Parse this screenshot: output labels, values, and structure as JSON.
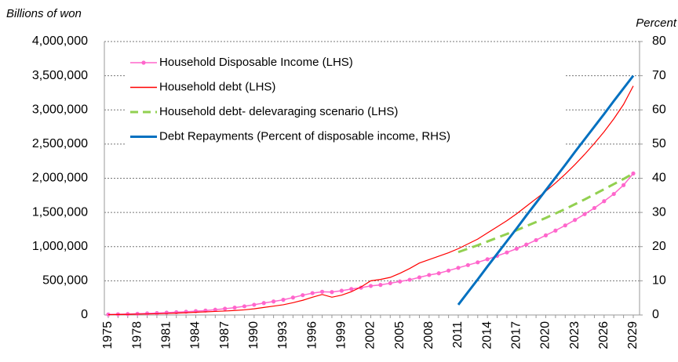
{
  "chart_data": {
    "type": "line",
    "y_label": "Billions of won",
    "y2_label": "Percent",
    "categories": [
      "1975",
      null,
      null,
      "1978",
      null,
      null,
      "1981",
      null,
      null,
      "1984",
      null,
      null,
      "1987",
      null,
      null,
      "1990",
      null,
      null,
      "1993",
      null,
      null,
      "1996",
      null,
      null,
      "1999",
      null,
      null,
      "2002",
      null,
      null,
      "2005",
      null,
      null,
      "2008",
      null,
      null,
      "2011",
      null,
      null,
      "2014",
      null,
      null,
      "2017",
      null,
      null,
      "2020",
      null,
      null,
      "2023",
      null,
      null,
      "2026",
      null,
      null,
      "2029"
    ],
    "series": [
      {
        "name": "Household Disposable Income (LHS)",
        "color": "#ff66cc",
        "markers": true,
        "values": [
          8000,
          10000,
          14000,
          18000,
          23000,
          28000,
          35000,
          41000,
          48000,
          56000,
          65000,
          77000,
          92000,
          108000,
          127000,
          150000,
          175000,
          198000,
          222000,
          255000,
          290000,
          320000,
          340000,
          335000,
          355000,
          380000,
          400000,
          425000,
          440000,
          465000,
          490000,
          515000,
          550000,
          585000,
          610000,
          650000,
          690000,
          730000,
          770000,
          815000,
          865000,
          915000,
          970000,
          1030000,
          1095000,
          1165000,
          1235000,
          1310000,
          1390000,
          1475000,
          1565000,
          1665000,
          1770000,
          1900000,
          2070000
        ]
      },
      {
        "name": "Household debt (LHS)",
        "color": "#ff0000",
        "values": [
          5000,
          7000,
          9000,
          12000,
          15000,
          18000,
          22000,
          27000,
          33000,
          40000,
          46000,
          52000,
          58000,
          66000,
          75000,
          90000,
          110000,
          130000,
          150000,
          180000,
          215000,
          260000,
          300000,
          260000,
          290000,
          340000,
          410000,
          500000,
          520000,
          550000,
          610000,
          680000,
          760000,
          810000,
          860000,
          910000,
          970000,
          1040000,
          1110000,
          1200000,
          1290000,
          1380000,
          1480000,
          1590000,
          1700000,
          1810000,
          1930000,
          2060000,
          2200000,
          2350000,
          2510000,
          2680000,
          2870000,
          3080000,
          3350000
        ]
      },
      {
        "name": "Household debt- delevaraging scenario (LHS)",
        "color": "#92d050",
        "dashed": true,
        "values": [
          null,
          null,
          null,
          null,
          null,
          null,
          null,
          null,
          null,
          null,
          null,
          null,
          null,
          null,
          null,
          null,
          null,
          null,
          null,
          null,
          null,
          null,
          null,
          null,
          null,
          null,
          null,
          null,
          null,
          null,
          null,
          null,
          null,
          null,
          null,
          null,
          920000,
          970000,
          1020000,
          1075000,
          1130000,
          1185000,
          1240000,
          1300000,
          1360000,
          1420000,
          1485000,
          1550000,
          1620000,
          1690000,
          1765000,
          1840000,
          1915000,
          1990000,
          2070000
        ]
      },
      {
        "name": "Debt Repayments (Percent of disposable income, RHS)",
        "color": "#0070c0",
        "axis": "y2",
        "values": [
          null,
          null,
          null,
          null,
          null,
          null,
          null,
          null,
          null,
          null,
          null,
          null,
          null,
          null,
          null,
          null,
          null,
          null,
          null,
          null,
          null,
          null,
          null,
          null,
          null,
          null,
          null,
          null,
          null,
          null,
          null,
          null,
          null,
          null,
          null,
          null,
          3,
          6.7,
          10.4,
          14.2,
          17.9,
          21.6,
          25.3,
          29.1,
          32.8,
          36.5,
          40.2,
          43.9,
          47.7,
          51.4,
          55.1,
          58.8,
          62.6,
          66.3,
          70
        ]
      }
    ],
    "ylim": [
      0,
      4000000
    ],
    "yticks": [
      0,
      {
        "value": 500000,
        "label": "500,000"
      },
      {
        "value": 1000000,
        "label": "1,000,000"
      },
      {
        "value": 1500000,
        "label": "1,500,000"
      },
      {
        "value": 2000000,
        "label": "2,000,000"
      },
      {
        "value": 2500000,
        "label": "2,500,000"
      },
      {
        "value": 3000000,
        "label": "3,000,000"
      },
      {
        "value": 3500000,
        "label": "3,500,000"
      },
      {
        "value": 4000000,
        "label": "4,000,000"
      }
    ],
    "y2lim": [
      0,
      80
    ],
    "y2ticks": [
      0,
      10,
      20,
      30,
      40,
      50,
      60,
      70,
      80
    ],
    "grid": true,
    "legend": "top-left"
  }
}
